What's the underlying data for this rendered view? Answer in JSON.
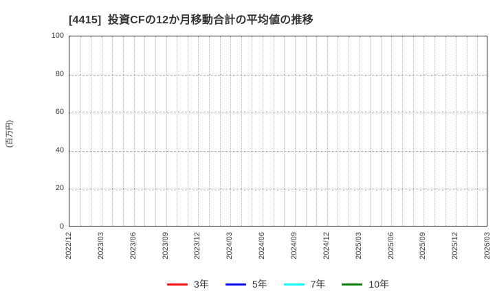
{
  "chart_data": {
    "type": "line",
    "title": "[4415]  投資CFの12か月移動合計の平均値の推移",
    "ylabel": "(百万円)",
    "xlabel": "",
    "ylim": [
      0,
      100
    ],
    "yticks": [
      0,
      20,
      40,
      60,
      80,
      100
    ],
    "x_tick_labels": [
      "2022/12",
      "2023/03",
      "2023/06",
      "2023/09",
      "2023/12",
      "2024/03",
      "2024/06",
      "2024/09",
      "2024/12",
      "2025/03",
      "2025/06",
      "2025/09",
      "2025/12",
      "2026/03"
    ],
    "x_tick_interval_months": 3,
    "grid": {
      "style": "dotted",
      "vertical_color": "#b0b0b0",
      "horizontal_color": "#9a9a9a",
      "vertical_every": "month"
    },
    "axis_color": "#1a1a1a",
    "text_color": "#333333",
    "legend_position": "bottom",
    "series": [
      {
        "name": "3年",
        "color": "#ff0000",
        "values": []
      },
      {
        "name": "5年",
        "color": "#0000ff",
        "values": []
      },
      {
        "name": "7年",
        "color": "#00ffff",
        "values": []
      },
      {
        "name": "10年",
        "color": "#008000",
        "values": []
      }
    ]
  }
}
